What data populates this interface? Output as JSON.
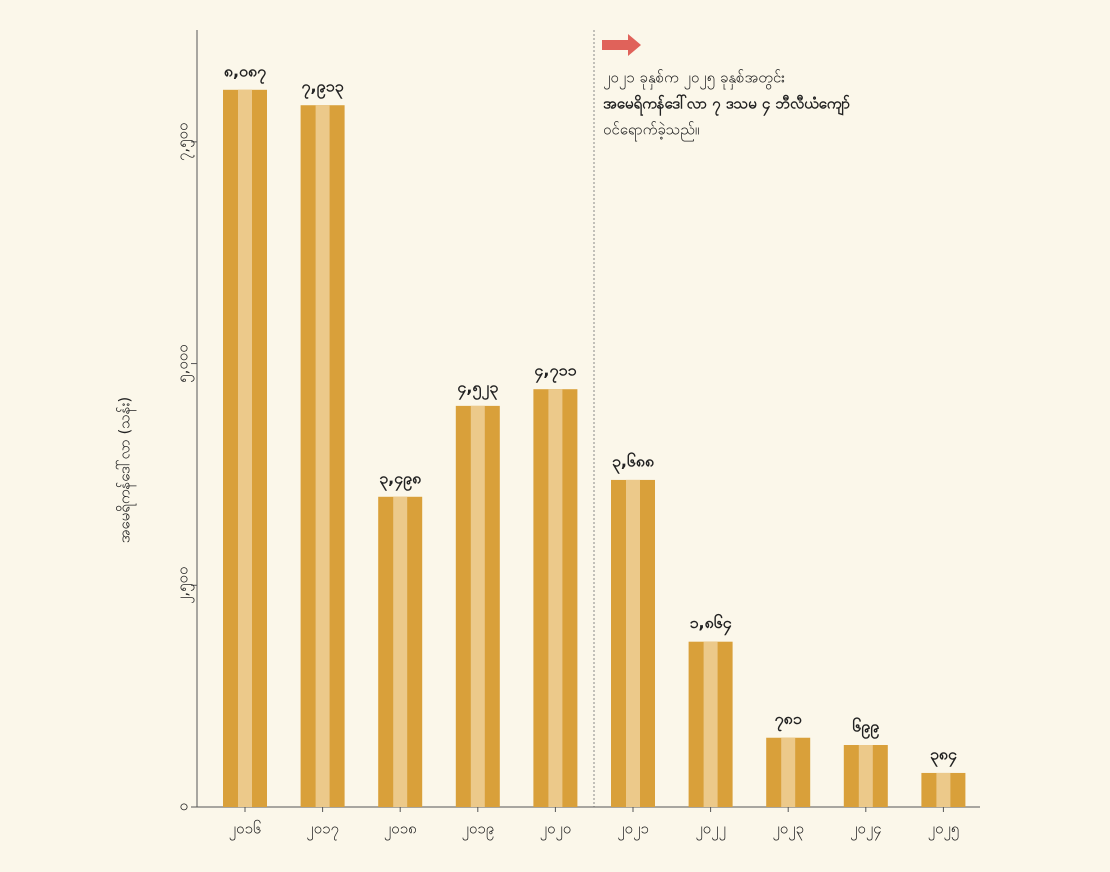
{
  "chart_data": {
    "type": "bar",
    "y_label": "အမေရိကန်ဒေါ်လာ (သန်း)",
    "categories": [
      "၂၀၁၆",
      "၂၀၁၇",
      "၂၀၁၈",
      "၂၀၁၉",
      "၂၀၂၀",
      "၂၀၂၁",
      "၂၀၂၂",
      "၂၀၂၃",
      "၂၀၂၄",
      "၂၀၂၅"
    ],
    "values": [
      8087,
      7913,
      3498,
      4523,
      4711,
      3688,
      1864,
      781,
      699,
      384
    ],
    "value_labels": [
      "၈,၀၈၇",
      "၇,၉၁၃",
      "၃,၄၉၈",
      "၄,၅၂၃",
      "၄,၇၁၁",
      "၃,၆၈၈",
      "၁,၈၆၄",
      "၇၈၁",
      "၆၉၉",
      "၃၈၄"
    ],
    "color": "#d9a03a",
    "ylim": [
      0,
      8750
    ],
    "yticks": [
      {
        "value": 0,
        "label": "၀"
      },
      {
        "value": 2500,
        "label": "၂,၅၀၀"
      },
      {
        "value": 5000,
        "label": "၅,၀၀၀"
      },
      {
        "value": 7500,
        "label": "၇,၅၀၀"
      }
    ],
    "annotation": [
      "၂၀၂၁ ခုနှစ်က ၂၀၂၅ ခုနှစ်အတွင်း",
      "အမေရိကန်ဒေါ်လာ ၇ ဒသမ ၄ ဘီလီယံကျော်",
      "ဝင်ရောက်ခဲ့သည်။"
    ]
  }
}
